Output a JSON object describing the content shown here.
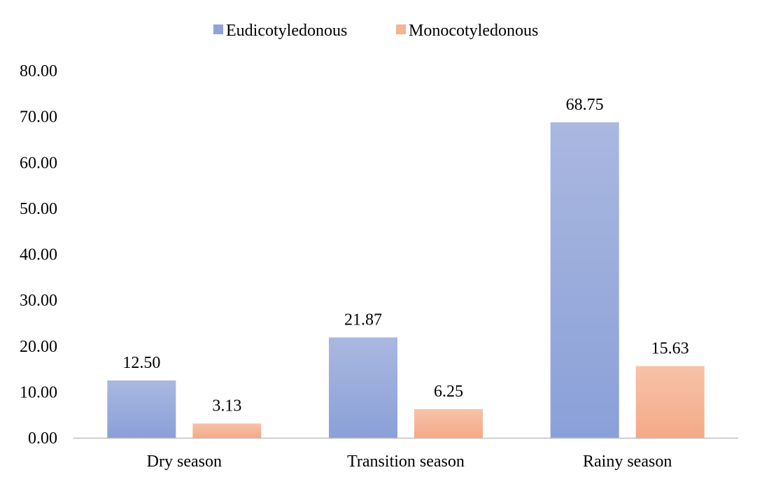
{
  "chart_data": {
    "type": "bar",
    "title": "",
    "xlabel": "",
    "ylabel": "",
    "categories": [
      "Dry season",
      "Transition season",
      "Rainy season"
    ],
    "series": [
      {
        "name": "Eudicotyledonous",
        "values": [
          12.5,
          21.87,
          68.75
        ],
        "labels": [
          "12.50",
          "21.87",
          "68.75"
        ],
        "color": "#8fa3d9",
        "color_top": "#aab8e0",
        "color_bottom": "#8aa0d8"
      },
      {
        "name": "Monocotyledonous",
        "values": [
          3.13,
          6.25,
          15.63
        ],
        "labels": [
          "3.13",
          "6.25",
          "15.63"
        ],
        "color": "#f4b393",
        "color_top": "#f7c2a8",
        "color_bottom": "#f4aa88"
      }
    ],
    "ylim": [
      0,
      80
    ],
    "yticks": [
      "0.00",
      "10.00",
      "20.00",
      "30.00",
      "40.00",
      "50.00",
      "60.00",
      "70.00",
      "80.00"
    ],
    "grid": false,
    "legend_position": "top-center",
    "axis_color": "#bfbfbf"
  }
}
